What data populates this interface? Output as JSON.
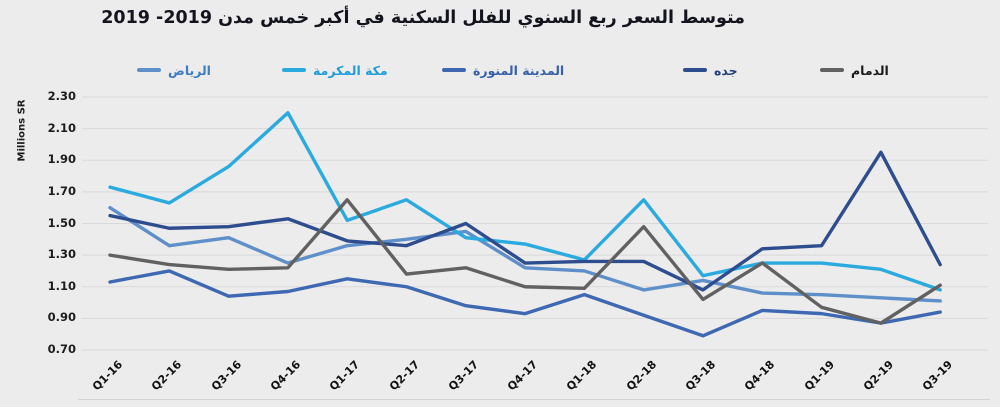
{
  "title": "متوسط السعر ربع السنوي للفلل السكنية في أكبر خمس مدن  2019- 2019",
  "y_axis": {
    "label": "Millions SR",
    "ticks": [
      "2.30",
      "2.10",
      "1.90",
      "1.70",
      "1.50",
      "1.30",
      "1.10",
      "0.90",
      "0.70"
    ]
  },
  "legend": [
    {
      "label": "الرياض",
      "color": "#5E8FC9",
      "text_color": "#3E7BBF"
    },
    {
      "label": "مكة المكرمة",
      "color": "#2BAADF",
      "text_color": "#1E9CD7"
    },
    {
      "label": "المدينة المنورة",
      "color": "#3E68B2",
      "text_color": "#3760A8"
    },
    {
      "label": "جده",
      "color": "#2E4D8E",
      "text_color": "#27437F"
    },
    {
      "label": "الدمام",
      "color": "#616161",
      "text_color": "#1a1a1a"
    }
  ],
  "chart_data": {
    "type": "line",
    "title": "متوسط السعر ربع السنوي للفلل السكنية في أكبر خمس مدن  2019- 2019",
    "xlabel": "",
    "ylabel": "Millions SR",
    "ylim": [
      0.7,
      2.3
    ],
    "ytick_step": 0.2,
    "grid": "horizontal",
    "legend_position": "top",
    "categories": [
      "Q1-16",
      "Q2-16",
      "Q3-16",
      "Q4-16",
      "Q1-17",
      "Q2-17",
      "Q3-17",
      "Q4-17",
      "Q1-18",
      "Q2-18",
      "Q3-18",
      "Q4-18",
      "Q1-19",
      "Q2-19",
      "Q3-19"
    ],
    "series": [
      {
        "name": "الرياض",
        "color": "#5E8FC9",
        "values": [
          1.6,
          1.36,
          1.41,
          1.25,
          1.36,
          1.4,
          1.45,
          1.22,
          1.2,
          1.08,
          1.14,
          1.06,
          1.05,
          1.03,
          1.01
        ]
      },
      {
        "name": "مكة المكرمة",
        "color": "#2BAADF",
        "values": [
          1.73,
          1.63,
          1.86,
          2.2,
          1.52,
          1.65,
          1.41,
          1.37,
          1.27,
          1.65,
          1.17,
          1.25,
          1.25,
          1.21,
          1.08
        ]
      },
      {
        "name": "المدينة المنورة",
        "color": "#3E68B2",
        "values": [
          1.13,
          1.2,
          1.04,
          1.07,
          1.15,
          1.1,
          0.98,
          0.93,
          1.05,
          0.92,
          0.79,
          0.95,
          0.93,
          0.87,
          0.94
        ]
      },
      {
        "name": "جده",
        "color": "#2E4D8E",
        "values": [
          1.55,
          1.47,
          1.48,
          1.53,
          1.39,
          1.36,
          1.5,
          1.25,
          1.26,
          1.26,
          1.08,
          1.34,
          1.36,
          1.95,
          1.24
        ]
      },
      {
        "name": "الدمام",
        "color": "#616161",
        "values": [
          1.3,
          1.24,
          1.21,
          1.22,
          1.65,
          1.18,
          1.22,
          1.1,
          1.09,
          1.48,
          1.02,
          1.25,
          0.97,
          0.87,
          1.11
        ]
      }
    ]
  }
}
